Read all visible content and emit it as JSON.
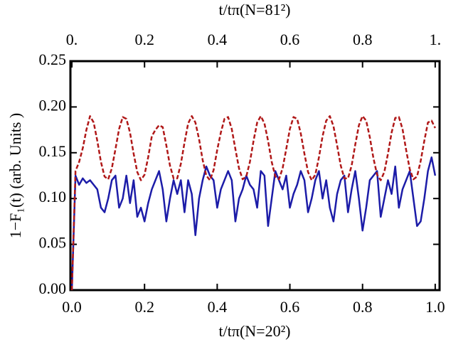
{
  "chart_data": {
    "type": "line",
    "xlabel": "t/tπ(N=20²)",
    "x2label": "t/tπ(N=81²)",
    "ylabel": "1−F₁(t) (arb. Units )",
    "xlim": [
      -0.004,
      1.012
    ],
    "x2lim": [
      -0.004,
      1.012
    ],
    "ylim": [
      0,
      0.25
    ],
    "xticks": [
      {
        "value": 0,
        "label": "0.0"
      },
      0.2,
      0.4,
      0.6,
      0.8,
      {
        "value": 1,
        "label": "1.0"
      }
    ],
    "x2ticks": [
      {
        "value": 0,
        "label": "0."
      },
      0.2,
      0.4,
      0.6,
      0.8,
      {
        "value": 1,
        "label": "1."
      }
    ],
    "yticks": [
      {
        "value": 0,
        "label": "0.00"
      },
      {
        "value": 0.05,
        "label": "0.05"
      },
      {
        "value": 0.1,
        "label": "0.10"
      },
      {
        "value": 0.15,
        "label": "0.15"
      },
      {
        "value": 0.2,
        "label": "0.20"
      },
      {
        "value": 0.25,
        "label": "0.25"
      }
    ],
    "x": [
      0,
      0.01,
      0.02,
      0.03,
      0.04,
      0.05,
      0.06,
      0.07,
      0.08,
      0.09,
      0.1,
      0.11,
      0.12,
      0.13,
      0.14,
      0.15,
      0.16,
      0.17,
      0.18,
      0.19,
      0.2,
      0.21,
      0.22,
      0.23,
      0.24,
      0.25,
      0.26,
      0.27,
      0.28,
      0.29,
      0.3,
      0.31,
      0.32,
      0.33,
      0.34,
      0.35,
      0.36,
      0.37,
      0.38,
      0.39,
      0.4,
      0.41,
      0.42,
      0.43,
      0.44,
      0.45,
      0.46,
      0.47,
      0.48,
      0.49,
      0.5,
      0.51,
      0.52,
      0.53,
      0.54,
      0.55,
      0.56,
      0.57,
      0.58,
      0.59,
      0.6,
      0.61,
      0.62,
      0.63,
      0.64,
      0.65,
      0.66,
      0.67,
      0.68,
      0.69,
      0.7,
      0.71,
      0.72,
      0.73,
      0.74,
      0.75,
      0.76,
      0.77,
      0.78,
      0.79,
      0.8,
      0.81,
      0.82,
      0.83,
      0.84,
      0.85,
      0.86,
      0.87,
      0.88,
      0.89,
      0.9,
      0.91,
      0.92,
      0.93,
      0.94,
      0.95,
      0.96,
      0.97,
      0.98,
      0.99,
      1
    ],
    "series": [
      {
        "color": "#1c1ca8",
        "dash": false,
        "xaxis": "x",
        "values": [
          0,
          0.125,
          0.115,
          0.122,
          0.117,
          0.12,
          0.115,
          0.11,
          0.09,
          0.085,
          0.1,
          0.12,
          0.125,
          0.09,
          0.1,
          0.125,
          0.095,
          0.12,
          0.08,
          0.09,
          0.075,
          0.095,
          0.11,
          0.12,
          0.13,
          0.11,
          0.075,
          0.1,
          0.12,
          0.105,
          0.12,
          0.085,
          0.12,
          0.105,
          0.06,
          0.1,
          0.12,
          0.135,
          0.125,
          0.12,
          0.09,
          0.11,
          0.12,
          0.13,
          0.12,
          0.075,
          0.1,
          0.11,
          0.125,
          0.115,
          0.11,
          0.09,
          0.13,
          0.125,
          0.07,
          0.1,
          0.13,
          0.12,
          0.11,
          0.125,
          0.09,
          0.105,
          0.115,
          0.13,
          0.12,
          0.085,
          0.1,
          0.12,
          0.13,
          0.1,
          0.12,
          0.09,
          0.075,
          0.105,
          0.12,
          0.125,
          0.085,
          0.11,
          0.13,
          0.1,
          0.065,
          0.09,
          0.12,
          0.125,
          0.13,
          0.08,
          0.1,
          0.12,
          0.105,
          0.135,
          0.09,
          0.11,
          0.12,
          0.13,
          0.1,
          0.07,
          0.075,
          0.1,
          0.13,
          0.145,
          0.125
        ]
      },
      {
        "color": "#b01818",
        "dash": true,
        "xaxis": "x2",
        "values": [
          0,
          0.13,
          0.14,
          0.155,
          0.175,
          0.19,
          0.183,
          0.163,
          0.14,
          0.124,
          0.121,
          0.133,
          0.154,
          0.176,
          0.189,
          0.187,
          0.172,
          0.149,
          0.129,
          0.12,
          0.126,
          0.145,
          0.168,
          0.175,
          0.18,
          0.178,
          0.158,
          0.136,
          0.122,
          0.122,
          0.138,
          0.161,
          0.182,
          0.19,
          0.183,
          0.165,
          0.142,
          0.125,
          0.12,
          0.131,
          0.153,
          0.172,
          0.187,
          0.189,
          0.176,
          0.154,
          0.133,
          0.121,
          0.124,
          0.14,
          0.163,
          0.183,
          0.19,
          0.182,
          0.163,
          0.14,
          0.124,
          0.121,
          0.133,
          0.154,
          0.176,
          0.189,
          0.187,
          0.171,
          0.149,
          0.129,
          0.12,
          0.126,
          0.145,
          0.168,
          0.185,
          0.19,
          0.179,
          0.158,
          0.136,
          0.122,
          0.122,
          0.136,
          0.159,
          0.18,
          0.19,
          0.185,
          0.167,
          0.144,
          0.126,
          0.12,
          0.129,
          0.149,
          0.172,
          0.188,
          0.189,
          0.176,
          0.153,
          0.132,
          0.121,
          0.124,
          0.141,
          0.163,
          0.183,
          0.185,
          0.177
        ]
      }
    ]
  }
}
